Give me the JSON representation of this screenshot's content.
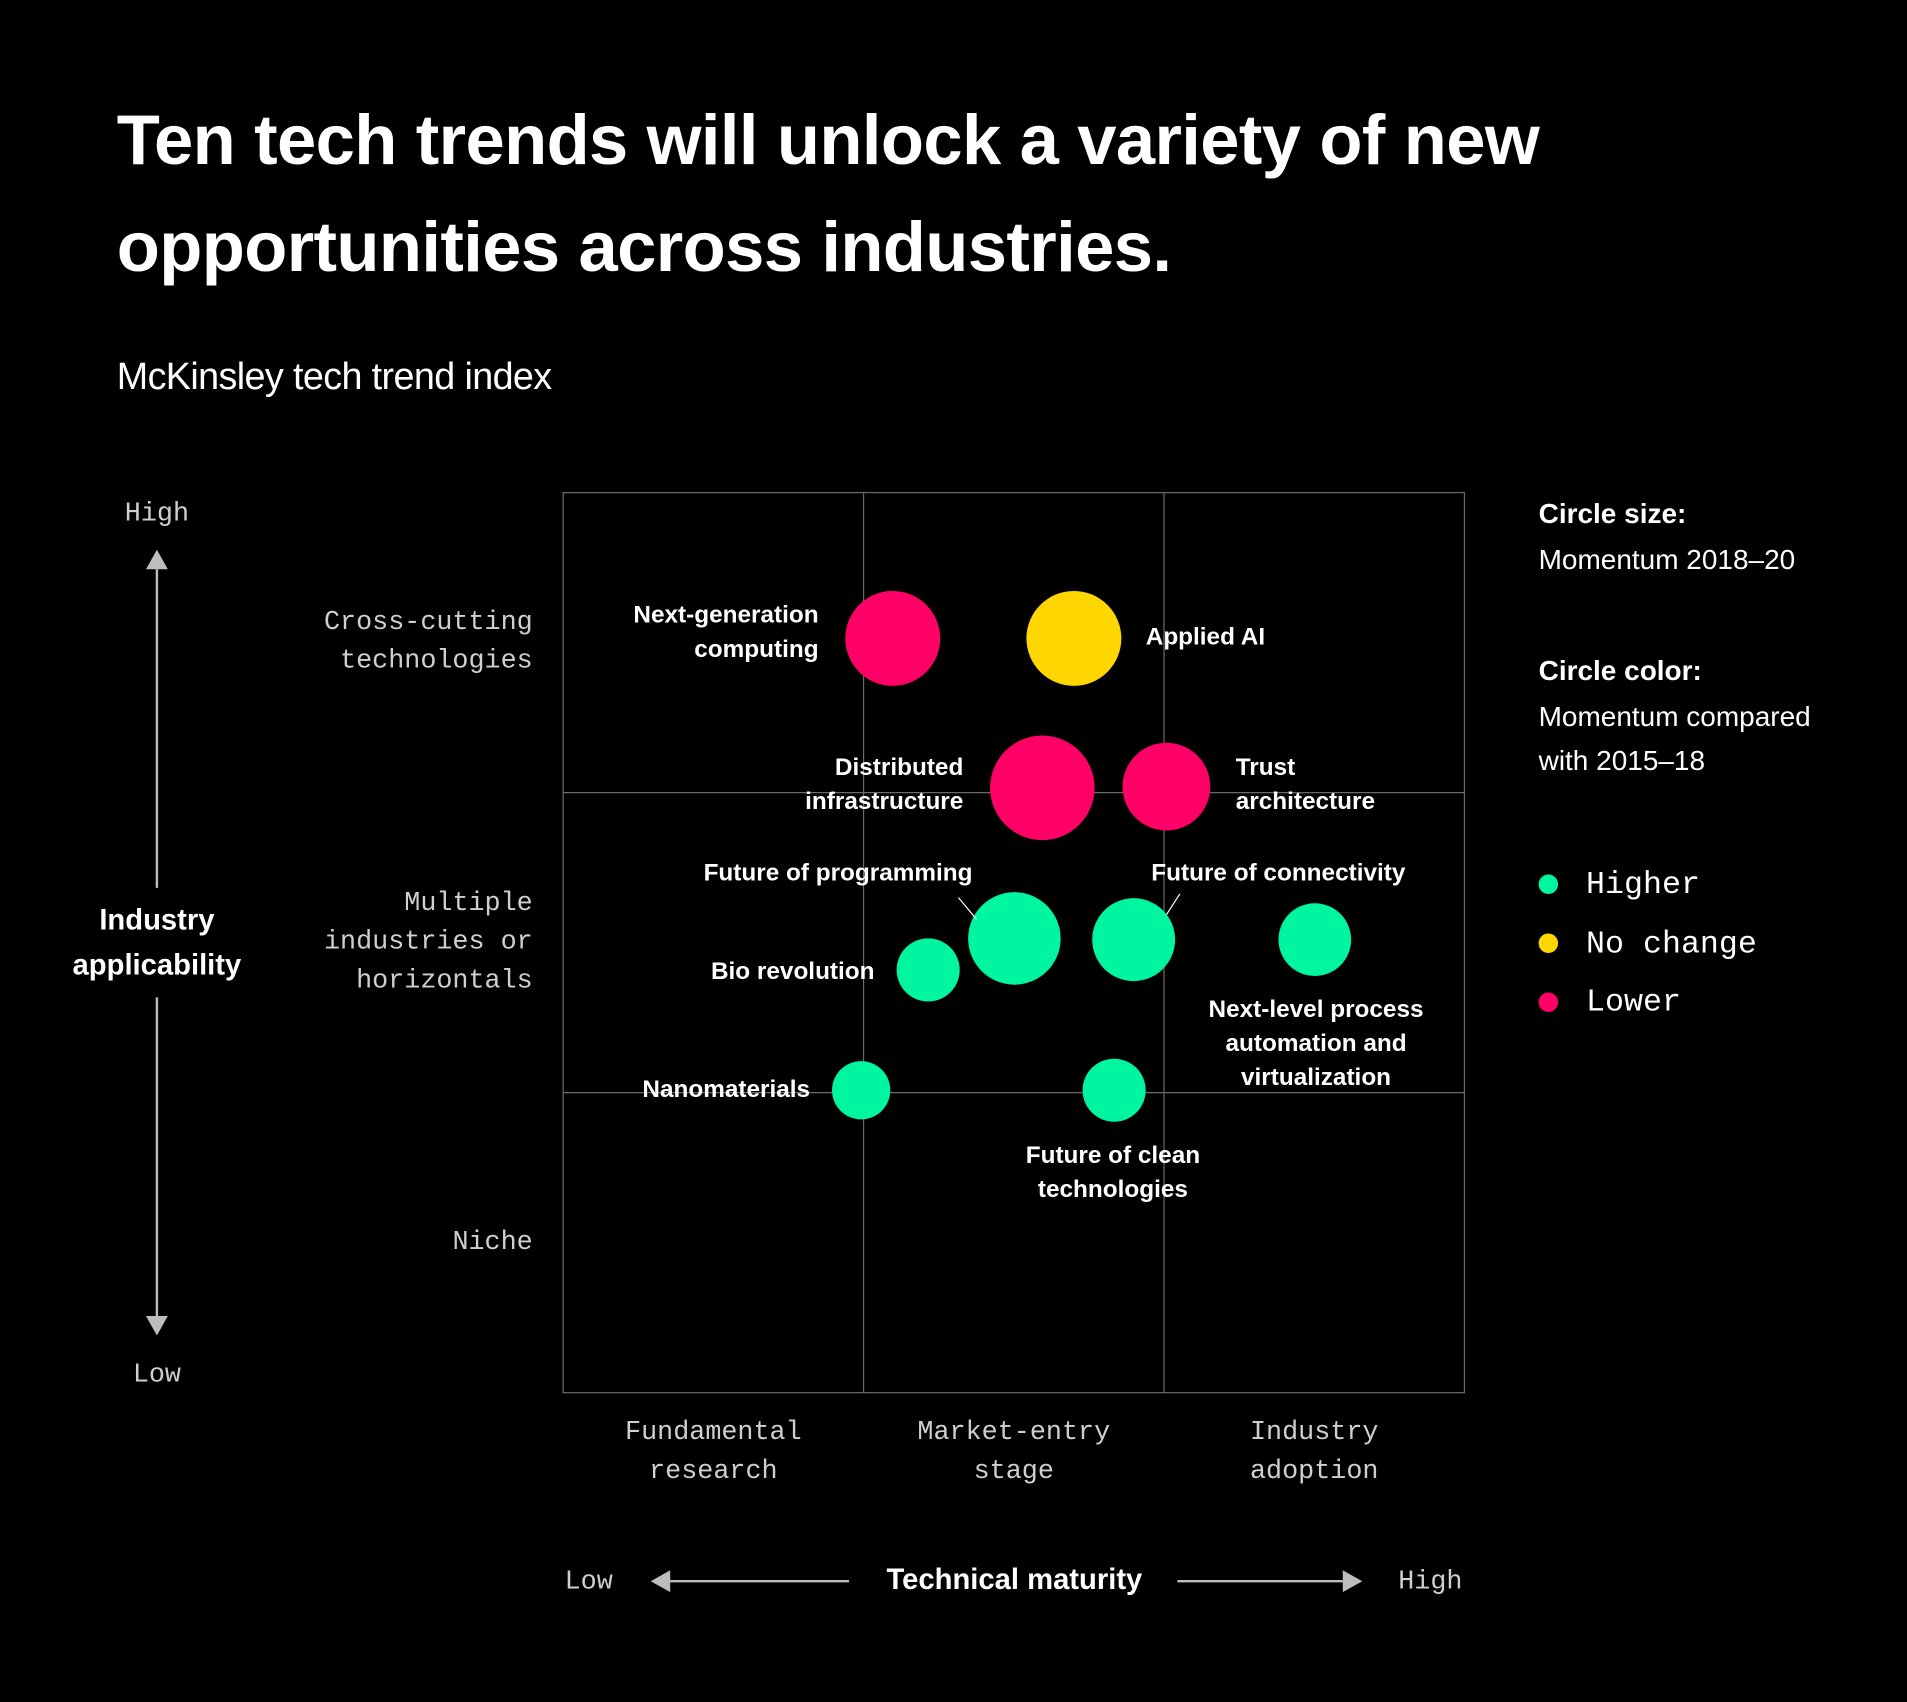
{
  "chart_data": {
    "type": "bubble",
    "title": "Ten tech trends will unlock a variety of new opportunities across industries.",
    "subtitle": "McKinsley tech trend index",
    "x_label": "Technical maturity",
    "x_low": "Low",
    "x_high": "High",
    "y_label": "Industry applicability",
    "y_low": "Low",
    "y_high": "High",
    "xlim": [
      0,
      3
    ],
    "ylim": [
      0,
      3
    ],
    "xticks": [
      {
        "value": 0.5,
        "label": "Fundamental research"
      },
      {
        "value": 1.5,
        "label": "Market-entry stage"
      },
      {
        "value": 2.5,
        "label": "Industry adoption"
      }
    ],
    "yticks": [
      {
        "value": 2.5,
        "label": "Cross-cutting technologies"
      },
      {
        "value": 1.5,
        "label": "Multiple industries or horizontals"
      },
      {
        "value": 0.5,
        "label": "Niche"
      }
    ],
    "size_legend_title": "Circle size:",
    "size_legend_text": "Momentum 2018–20",
    "color_legend_title": "Circle color:",
    "color_legend_text": "Momentum compared with 2015–18",
    "series": [
      {
        "name": "Higher",
        "color": "#00f5a0",
        "labels": [
          "Future of programming",
          "Future of connectivity",
          "Next-level process automation and virtualization",
          "Bio revolution",
          "Nanomaterials",
          "Future of clean technologies"
        ],
        "x": [
          1.502,
          1.899,
          2.502,
          1.215,
          0.992,
          1.834
        ],
        "y": [
          1.514,
          1.51,
          1.51,
          1.409,
          1.008,
          1.008
        ],
        "sizes": [
          0.154,
          0.138,
          0.121,
          0.105,
          0.097,
          0.105
        ]
      },
      {
        "name": "No change",
        "color": "#ffd600",
        "labels": [
          "Applied AI"
        ],
        "x": [
          1.7
        ],
        "y": [
          2.514
        ],
        "sizes": [
          0.158
        ]
      },
      {
        "name": "Lower",
        "color": "#ff0066",
        "labels": [
          "Next-generation computing",
          "Distributed infrastructure",
          "Trust architecture"
        ],
        "x": [
          1.097,
          1.595,
          2.008
        ],
        "y": [
          2.514,
          2.016,
          2.02
        ],
        "sizes": [
          0.158,
          0.174,
          0.146
        ]
      }
    ]
  }
}
